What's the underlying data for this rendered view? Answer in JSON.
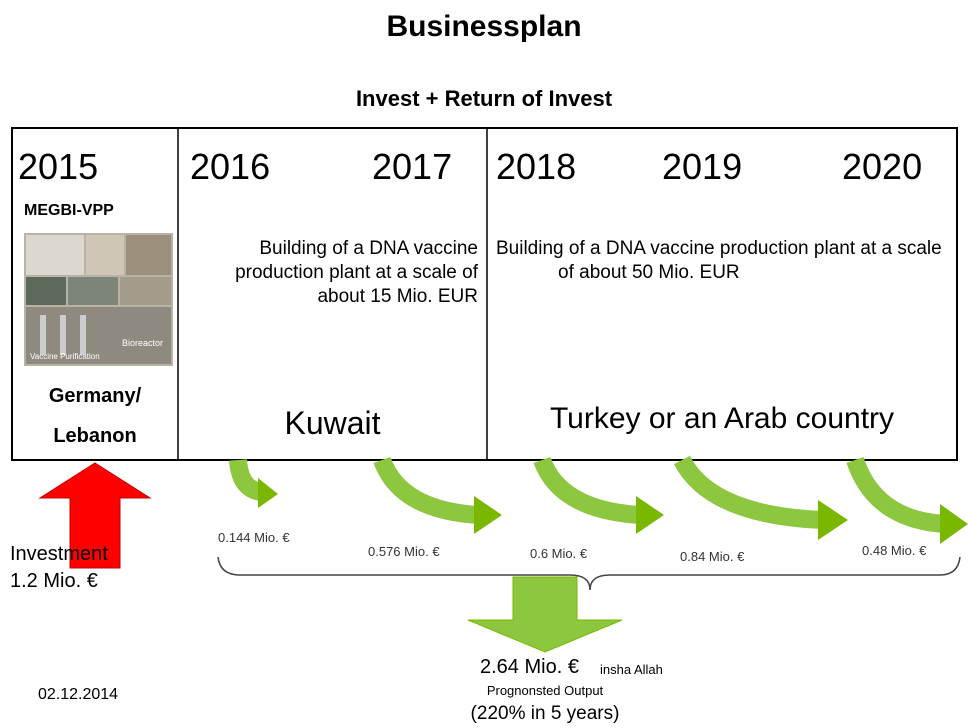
{
  "header": {
    "title": "Businessplan",
    "subtitle": "Invest + Return of Invest"
  },
  "columns": [
    {
      "years": [
        "2015"
      ],
      "project": "MEGBI-VPP",
      "photo_captions": [
        "Vaccine Purification",
        "Bioreactor"
      ],
      "location_lines": [
        "Germany/",
        "Lebanon"
      ]
    },
    {
      "years": [
        "2016",
        "2017"
      ],
      "text": "Building of a DNA vaccine production plant at a scale of about 15 Mio. EUR",
      "location": "Kuwait"
    },
    {
      "years": [
        "2018",
        "2019",
        "2020"
      ],
      "text": "Building of a DNA vaccine production plant at a scale of about 50 Mio. EUR",
      "location": "Turkey or an Arab country"
    }
  ],
  "returns": [
    "0.144 Mio. €",
    "0.576 Mio. €",
    "0.6 Mio. €",
    "0.84 Mio. €",
    "0.48 Mio. €"
  ],
  "investment": {
    "label": "Investment",
    "amount": "1.2 Mio. €"
  },
  "total": {
    "amount": "2.64 Mio. €",
    "note": "insha Allah",
    "caption": "Prognonsted Output",
    "ratio": "(220% in 5 years)"
  },
  "date": "02.12.2014"
}
